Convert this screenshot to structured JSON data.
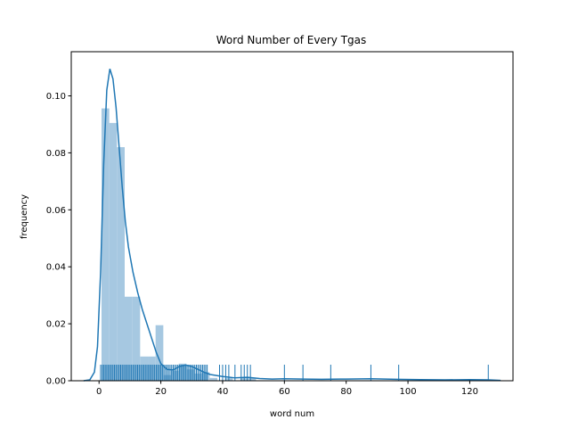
{
  "chart_data": {
    "type": "bar",
    "title": "Word Number of Every Tgas",
    "xlabel": "word num",
    "ylabel": "frequency",
    "xlim": [
      -9,
      134
    ],
    "ylim": [
      0,
      0.1155
    ],
    "xticks": [
      0,
      20,
      40,
      60,
      80,
      100,
      120
    ],
    "yticks": [
      0.0,
      0.02,
      0.04,
      0.06,
      0.08,
      0.1
    ],
    "ytick_labels": [
      "0.00",
      "0.02",
      "0.04",
      "0.06",
      "0.08",
      "0.10"
    ],
    "grid": false,
    "legend": "none",
    "histogram": {
      "bin_width": 2.5,
      "bins": [
        {
          "x": 0.8,
          "height": 0.0956
        },
        {
          "x": 3.3,
          "height": 0.0905
        },
        {
          "x": 5.8,
          "height": 0.082
        },
        {
          "x": 8.3,
          "height": 0.0295
        },
        {
          "x": 10.8,
          "height": 0.0295
        },
        {
          "x": 13.3,
          "height": 0.0085
        },
        {
          "x": 15.8,
          "height": 0.0085
        },
        {
          "x": 18.3,
          "height": 0.0195
        },
        {
          "x": 20.8,
          "height": 0.002
        },
        {
          "x": 23.3,
          "height": 0.0035
        },
        {
          "x": 25.8,
          "height": 0.006
        },
        {
          "x": 28.3,
          "height": 0.004
        },
        {
          "x": 30.8,
          "height": 0.0025
        },
        {
          "x": 33.3,
          "height": 0.003
        },
        {
          "x": 35.8,
          "height": 0.001
        },
        {
          "x": 40.8,
          "height": 0.001
        },
        {
          "x": 45.8,
          "height": 0.001
        },
        {
          "x": 48.3,
          "height": 0.001
        }
      ]
    },
    "kde": {
      "x": [
        -5,
        -3,
        -1.5,
        -0.5,
        0.5,
        1.5,
        2.5,
        3.5,
        4.5,
        5.5,
        6.5,
        7.5,
        8.5,
        9.5,
        11,
        12.5,
        14,
        15.5,
        17,
        18.5,
        20,
        22,
        24,
        26,
        28,
        30,
        32,
        34,
        36,
        40,
        44,
        48,
        52,
        56,
        60,
        66,
        72,
        80,
        88,
        96,
        104,
        112,
        120,
        126,
        130
      ],
      "y": [
        0.0,
        0.0003,
        0.003,
        0.012,
        0.038,
        0.076,
        0.102,
        0.1095,
        0.106,
        0.096,
        0.082,
        0.068,
        0.056,
        0.047,
        0.038,
        0.031,
        0.025,
        0.02,
        0.015,
        0.01,
        0.006,
        0.004,
        0.0038,
        0.005,
        0.0055,
        0.005,
        0.004,
        0.003,
        0.0022,
        0.0015,
        0.001,
        0.0012,
        0.0008,
        0.0006,
        0.0007,
        0.0006,
        0.0005,
        0.0006,
        0.0007,
        0.0005,
        0.0004,
        0.0003,
        0.0004,
        0.0003,
        0.0001
      ]
    },
    "rug": [
      0.5,
      1,
      1.5,
      2,
      2.5,
      3,
      3.5,
      4,
      4.5,
      5,
      5.5,
      6,
      6.5,
      7,
      7.5,
      8,
      8.5,
      9,
      9.5,
      10,
      10.5,
      11,
      11.5,
      12,
      12.5,
      13,
      13.5,
      14,
      14.5,
      15,
      15.5,
      16,
      16.5,
      17,
      17.5,
      18,
      18.5,
      19,
      19.5,
      20,
      20.5,
      21,
      21.5,
      22,
      22.5,
      23,
      23.5,
      24,
      24.5,
      25,
      25.5,
      26,
      26.5,
      27,
      27.5,
      28,
      28.5,
      29,
      29.5,
      30,
      30.5,
      31,
      31.5,
      32,
      32.5,
      33,
      33.5,
      34,
      34.5,
      35,
      39,
      40,
      41,
      42,
      44,
      46,
      47,
      48,
      49,
      60,
      66,
      75,
      88,
      97,
      126
    ],
    "colors": {
      "bar": "#a6c8e1",
      "line": "#1f77b4",
      "axis": "#000000"
    }
  }
}
